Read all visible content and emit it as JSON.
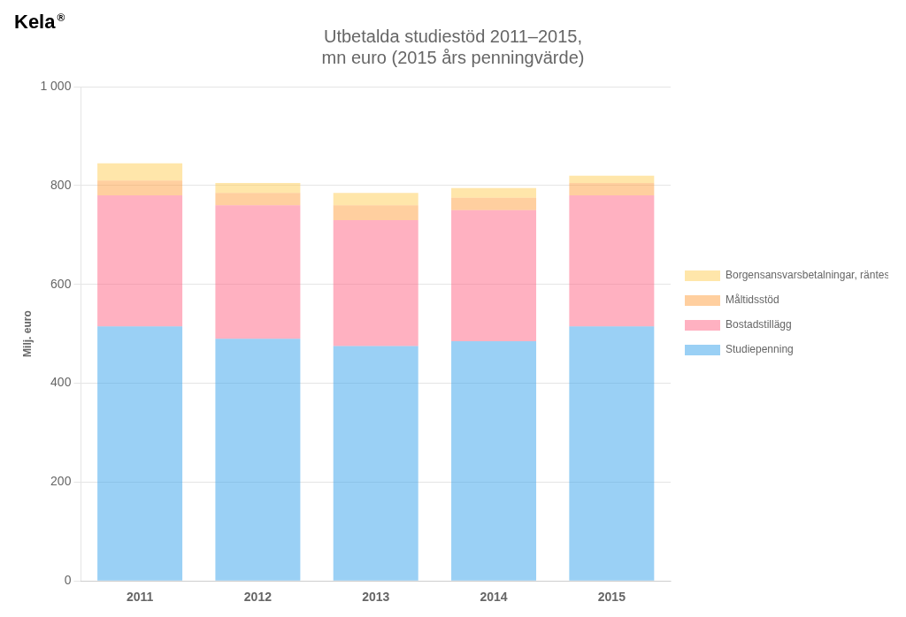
{
  "chart_data": {
    "type": "bar",
    "stacked": true,
    "title": "Utbetalda studiestöd 2011–2015,\nmn euro (2015 års penningvärde)",
    "ylabel": "Milj. euro",
    "annotations": [
      {
        "text": "Kela"
      },
      {
        "text": "®"
      }
    ],
    "categories": [
      "2011",
      "2012",
      "2013",
      "2014",
      "2015"
    ],
    "series": [
      {
        "name": "Studiepenning",
        "values": [
          515,
          490,
          475,
          485,
          515
        ]
      },
      {
        "name": "Bostadstillägg",
        "values": [
          265,
          270,
          255,
          265,
          265
        ]
      },
      {
        "name": "Måltidsstöd",
        "values": [
          30,
          25,
          30,
          25,
          25
        ]
      },
      {
        "name": "Borgensansvarsbetalningar,\nräntestöd och räntebidrag",
        "values": [
          35,
          20,
          25,
          20,
          15
        ]
      }
    ],
    "ylim": [
      0,
      1000
    ],
    "yticks": [
      0,
      200,
      400,
      600,
      800,
      {
        "value": 1000,
        "label": "1 000"
      }
    ],
    "grid": true,
    "legend": "right"
  }
}
